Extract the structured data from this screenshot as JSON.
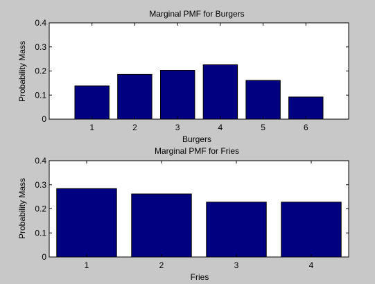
{
  "figure": {
    "background": "#c8c8c8"
  },
  "chart_data": [
    {
      "type": "bar",
      "title": "Marginal PMF for Burgers",
      "xlabel": "Burgers",
      "ylabel": "Probability Mass",
      "categories": [
        "1",
        "2",
        "3",
        "4",
        "5",
        "6"
      ],
      "values": [
        0.138,
        0.186,
        0.203,
        0.226,
        0.161,
        0.092
      ],
      "xlim": [
        0,
        7
      ],
      "ylim": [
        0,
        0.4
      ],
      "yticks": [
        "0",
        "0.1",
        "0.2",
        "0.3",
        "0.4"
      ],
      "bar_color": "#000080",
      "grid": false
    },
    {
      "type": "bar",
      "title": "Marginal PMF for Fries",
      "xlabel": "Fries",
      "ylabel": "Probability Mass",
      "categories": [
        "1",
        "2",
        "3",
        "4"
      ],
      "values": [
        0.284,
        0.262,
        0.228,
        0.228
      ],
      "xlim": [
        0.5,
        4.5
      ],
      "ylim": [
        0,
        0.4
      ],
      "yticks": [
        "0",
        "0.1",
        "0.2",
        "0.3",
        "0.4"
      ],
      "bar_color": "#000080",
      "grid": false
    }
  ]
}
